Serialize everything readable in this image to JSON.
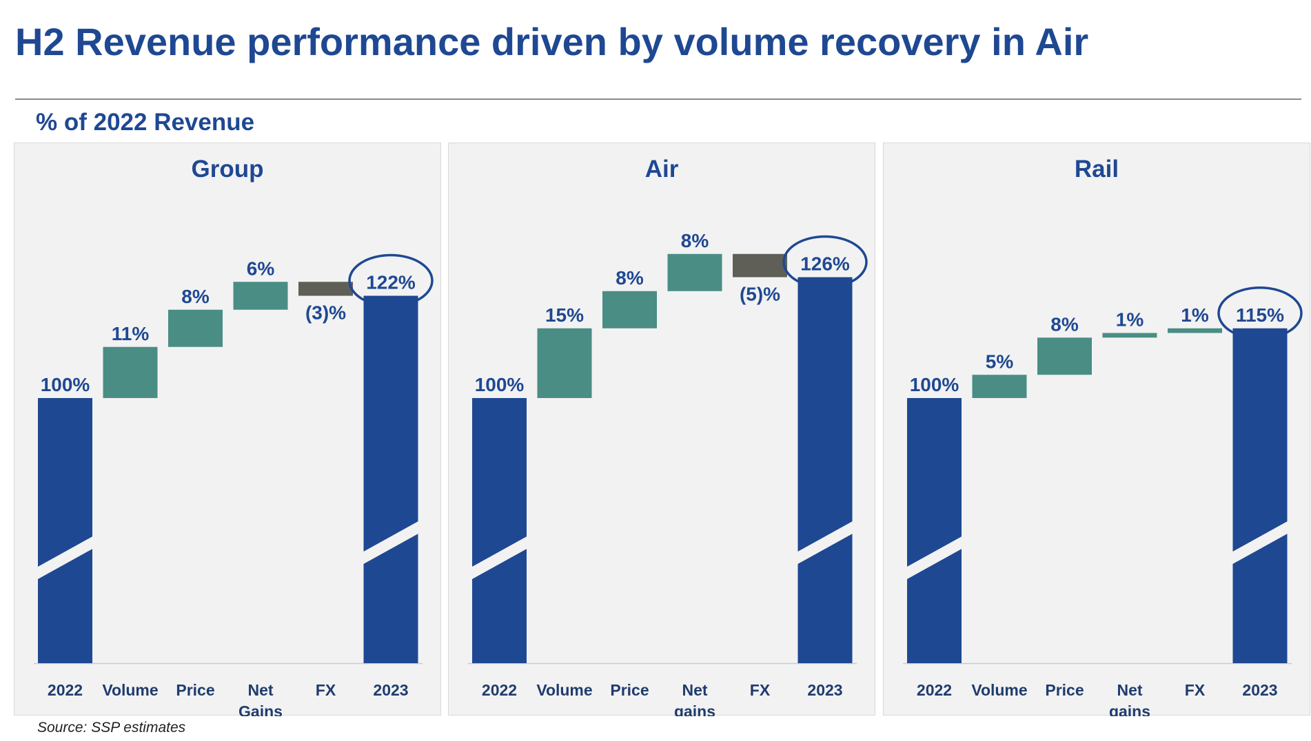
{
  "title": "H2 Revenue performance driven by volume recovery in Air",
  "subtitle": "% of 2022 Revenue",
  "source": "Source: SSP estimates",
  "colors": {
    "total": "#1f4892",
    "increase": "#4a8d84",
    "decrease": "#5f5f58",
    "text": "#1f4892",
    "axis_label": "#1f3c6e"
  },
  "chart_data": [
    {
      "type": "bar",
      "subtype": "waterfall",
      "title": "Group",
      "categories": [
        "2022",
        "Volume",
        "Price",
        "Net Gains",
        "FX",
        "2023"
      ],
      "values": [
        100,
        11,
        8,
        6,
        -3,
        122
      ],
      "kinds": [
        "total",
        "increase",
        "increase",
        "increase",
        "decrease",
        "total"
      ],
      "labels": [
        "100%",
        "11%",
        "8%",
        "6%",
        "(3)%",
        "122%"
      ],
      "highlight": "2023",
      "axis_break": true
    },
    {
      "type": "bar",
      "subtype": "waterfall",
      "title": "Air",
      "categories": [
        "2022",
        "Volume",
        "Price",
        "Net gains",
        "FX",
        "2023"
      ],
      "values": [
        100,
        15,
        8,
        8,
        -5,
        126
      ],
      "kinds": [
        "total",
        "increase",
        "increase",
        "increase",
        "decrease",
        "total"
      ],
      "labels": [
        "100%",
        "15%",
        "8%",
        "8%",
        "(5)%",
        "126%"
      ],
      "highlight": "2023",
      "axis_break": true
    },
    {
      "type": "bar",
      "subtype": "waterfall",
      "title": "Rail",
      "categories": [
        "2022",
        "Volume",
        "Price",
        "Net gains",
        "FX",
        "2023"
      ],
      "values": [
        100,
        5,
        8,
        1,
        1,
        115
      ],
      "kinds": [
        "total",
        "increase",
        "increase",
        "increase",
        "increase",
        "total"
      ],
      "labels": [
        "100%",
        "5%",
        "8%",
        "1%",
        "1%",
        "115%"
      ],
      "highlight": "2023",
      "axis_break": true
    }
  ]
}
